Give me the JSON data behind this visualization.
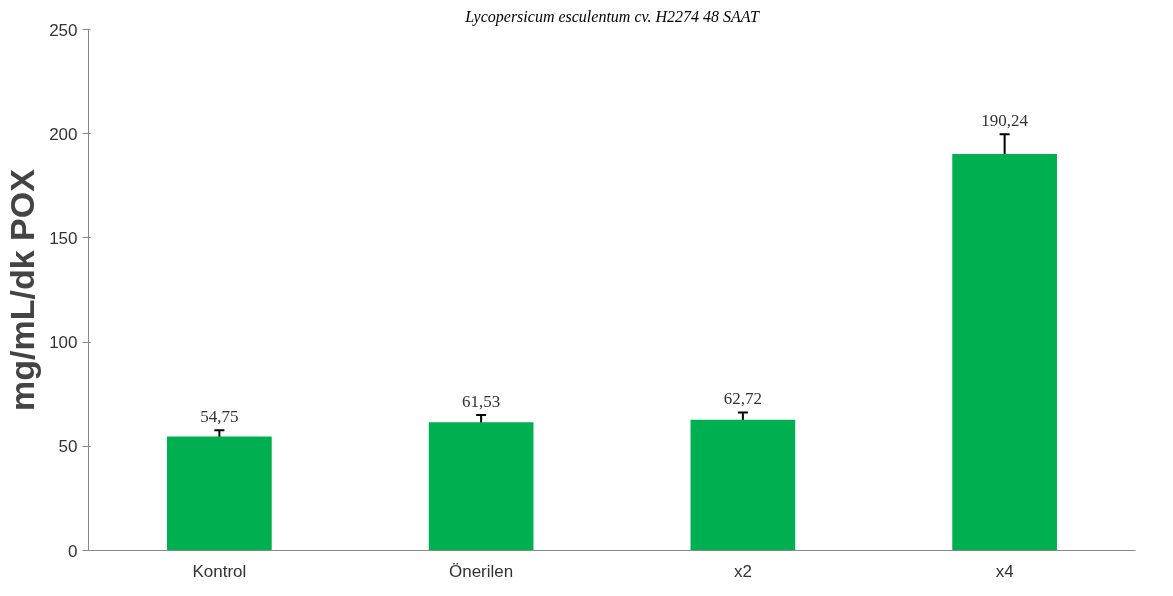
{
  "chart_data": {
    "type": "bar",
    "title": "Lycopersicum esculentum cv. H2274 48 SAAT",
    "ylabel": "mg/mL/dk POX",
    "categories": [
      "Kontrol",
      "Önerilen",
      "x2",
      "x4"
    ],
    "values": [
      54.75,
      61.53,
      62.72,
      190.24
    ],
    "errors": [
      3,
      3.5,
      3.5,
      9.5
    ],
    "value_labels": [
      "54,75",
      "61,53",
      "62,72",
      "190,24"
    ],
    "color": "#00b050",
    "ylim": [
      0,
      250
    ],
    "yticks": [
      0,
      50,
      100,
      150,
      200,
      250
    ],
    "grid": false
  }
}
